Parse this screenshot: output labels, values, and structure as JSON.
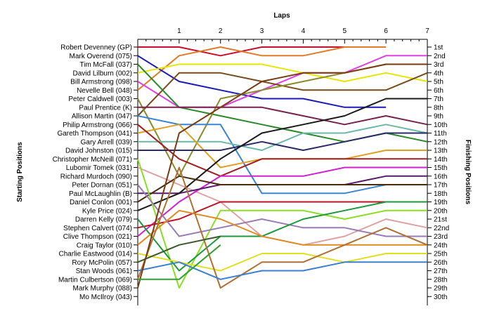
{
  "chart_data": {
    "type": "line",
    "title": "",
    "xlabel": "Laps",
    "ylabel_left": "Starting Positions",
    "ylabel_right": "Finishing Positions",
    "x_ticks": [
      1,
      2,
      3,
      4,
      5,
      6,
      7
    ],
    "xlim": [
      0,
      7
    ],
    "ylim": [
      1,
      30
    ],
    "y_inverted": true,
    "grid": false,
    "starting_grid": [
      "Robert Devenney (GP)",
      "Mark Overend (075)",
      "Tim McFall (037)",
      "David Lilburn (002)",
      "Bill Armstrong (098)",
      "Nevelle Bell (048)",
      "Peter Caldwell (003)",
      "Paul Prentice (K)",
      "Allison Martin (047)",
      "Philip Armstrong (066)",
      "Gareth Thompson (041)",
      "Gary Arrell (039)",
      "David Johnston (015)",
      "Christopher McNeill (071)",
      "Lubomir Tomek (031)",
      "Richard Murdoch (090)",
      "Peter Dornan (051)",
      "Paul McLaughlin (B)",
      "Daniel Conlon (001)",
      "Kyle Price (024)",
      "Darren Kelly (079)",
      "Stephen Calvert (074)",
      "Clive Thompson (021)",
      "Craig Taylor (010)",
      "Charlie Eastwood (014)",
      "Rory McPolin (057)",
      "Stan Woods (061)",
      "Martin Culbertson (069)",
      "Mark Murphy (088)",
      "Mo McIlroy (043)"
    ],
    "finishing_labels": [
      "1st",
      "2nd",
      "3rd",
      "4th",
      "5th",
      "6th",
      "7th",
      "8th",
      "9th",
      "10th",
      "11th",
      "12th",
      "13th",
      "14th",
      "15th",
      "16th",
      "17th",
      "18th",
      "19th",
      "20th",
      "21st",
      "22nd",
      "23rd",
      "24th",
      "25th",
      "26th",
      "27th",
      "28th",
      "29th",
      "30th"
    ],
    "series": [
      {
        "color": "#c8102e",
        "values": [
          1,
          1,
          2,
          1,
          1,
          1
        ]
      },
      {
        "color": "#e07b28",
        "values": [
          6,
          2,
          1,
          2,
          2,
          1,
          1
        ]
      },
      {
        "color": "#1a1ab8",
        "values": [
          2,
          5,
          6,
          7,
          7,
          8,
          8
        ]
      },
      {
        "color": "#e6e600",
        "values": [
          4,
          3,
          3,
          3,
          4,
          5,
          4,
          5
        ]
      },
      {
        "color": "#e040e0",
        "values": [
          5,
          8,
          8,
          6,
          4,
          4,
          2,
          2
        ]
      },
      {
        "color": "#7a4a1a",
        "values": [
          9,
          4,
          4,
          5,
          6,
          6,
          6,
          4
        ]
      },
      {
        "color": "#2a8a2a",
        "values": [
          3,
          8,
          9,
          10,
          11,
          12,
          11,
          12
        ]
      },
      {
        "color": "#8a8a2a",
        "values": [
          7,
          16,
          7,
          6,
          5,
          4,
          3,
          3
        ]
      },
      {
        "color": "#3a86d6",
        "values": [
          9,
          10,
          10,
          18,
          18,
          18,
          17,
          17
        ]
      },
      {
        "color": "#7a2050",
        "values": [
          8,
          8,
          8,
          8,
          9,
          10,
          9,
          10
        ]
      },
      {
        "color": "#6ab8a8",
        "values": [
          12,
          12,
          12,
          13,
          11,
          11,
          10,
          11
        ]
      },
      {
        "color": "#e0a020",
        "values": [
          11,
          10,
          15,
          14,
          14,
          14,
          13,
          13
        ]
      },
      {
        "color": "#2a2a6a",
        "values": [
          13,
          13,
          13,
          12,
          13,
          12,
          11,
          11
        ]
      },
      {
        "color": "#e0a0a0",
        "values": [
          15,
          17,
          19,
          23,
          24,
          23,
          21,
          22
        ]
      },
      {
        "color": "#a02020",
        "values": [
          10,
          14,
          16,
          14,
          14,
          14,
          14,
          14
        ]
      },
      {
        "color": "#d020d0",
        "values": [
          23,
          19,
          16,
          16,
          16,
          15,
          15,
          15
        ]
      },
      {
        "color": "#5a1a6a",
        "values": [
          18,
          18,
          17,
          17,
          17,
          17,
          16,
          16
        ]
      },
      {
        "color": "#1a1a1a",
        "values": [
          20,
          18,
          14,
          11,
          10,
          9,
          7,
          7
        ]
      },
      {
        "color": "#4a2a0a",
        "values": [
          19,
          16,
          17,
          17,
          17,
          17,
          17,
          17
        ]
      },
      {
        "color": "#c01020",
        "values": [
          22,
          21,
          19,
          19,
          19,
          19,
          19,
          19
        ]
      },
      {
        "color": "#88e020",
        "values": [
          14,
          29,
          20,
          20,
          20,
          21,
          20,
          20
        ]
      },
      {
        "color": "#9a7ab8",
        "values": [
          17,
          23,
          22,
          21,
          22,
          22,
          23,
          23
        ]
      },
      {
        "color": "#1a9a3a",
        "values": [
          21,
          27,
          23,
          23,
          21,
          20,
          19,
          19
        ]
      },
      {
        "color": "#e08a20",
        "values": [
          24,
          20,
          21,
          23,
          24,
          24,
          24,
          24
        ]
      },
      {
        "color": "#e0e020",
        "values": [
          25,
          26,
          27,
          25,
          25,
          26,
          25,
          25
        ]
      },
      {
        "color": "#b07030",
        "values": [
          28,
          15,
          29,
          26,
          26,
          24,
          22,
          24
        ]
      },
      {
        "color": "#3a80d0",
        "values": [
          27,
          26,
          28,
          27,
          27,
          26,
          26,
          26
        ]
      },
      {
        "color": "#3a5a2a",
        "values": [
          26,
          24,
          23
        ]
      },
      {
        "color": "#7a3a10",
        "values": [
          29,
          11,
          8,
          5,
          4,
          4,
          3,
          3
        ]
      },
      {
        "color": "#30a030",
        "values": [
          28,
          28,
          24
        ]
      }
    ]
  }
}
